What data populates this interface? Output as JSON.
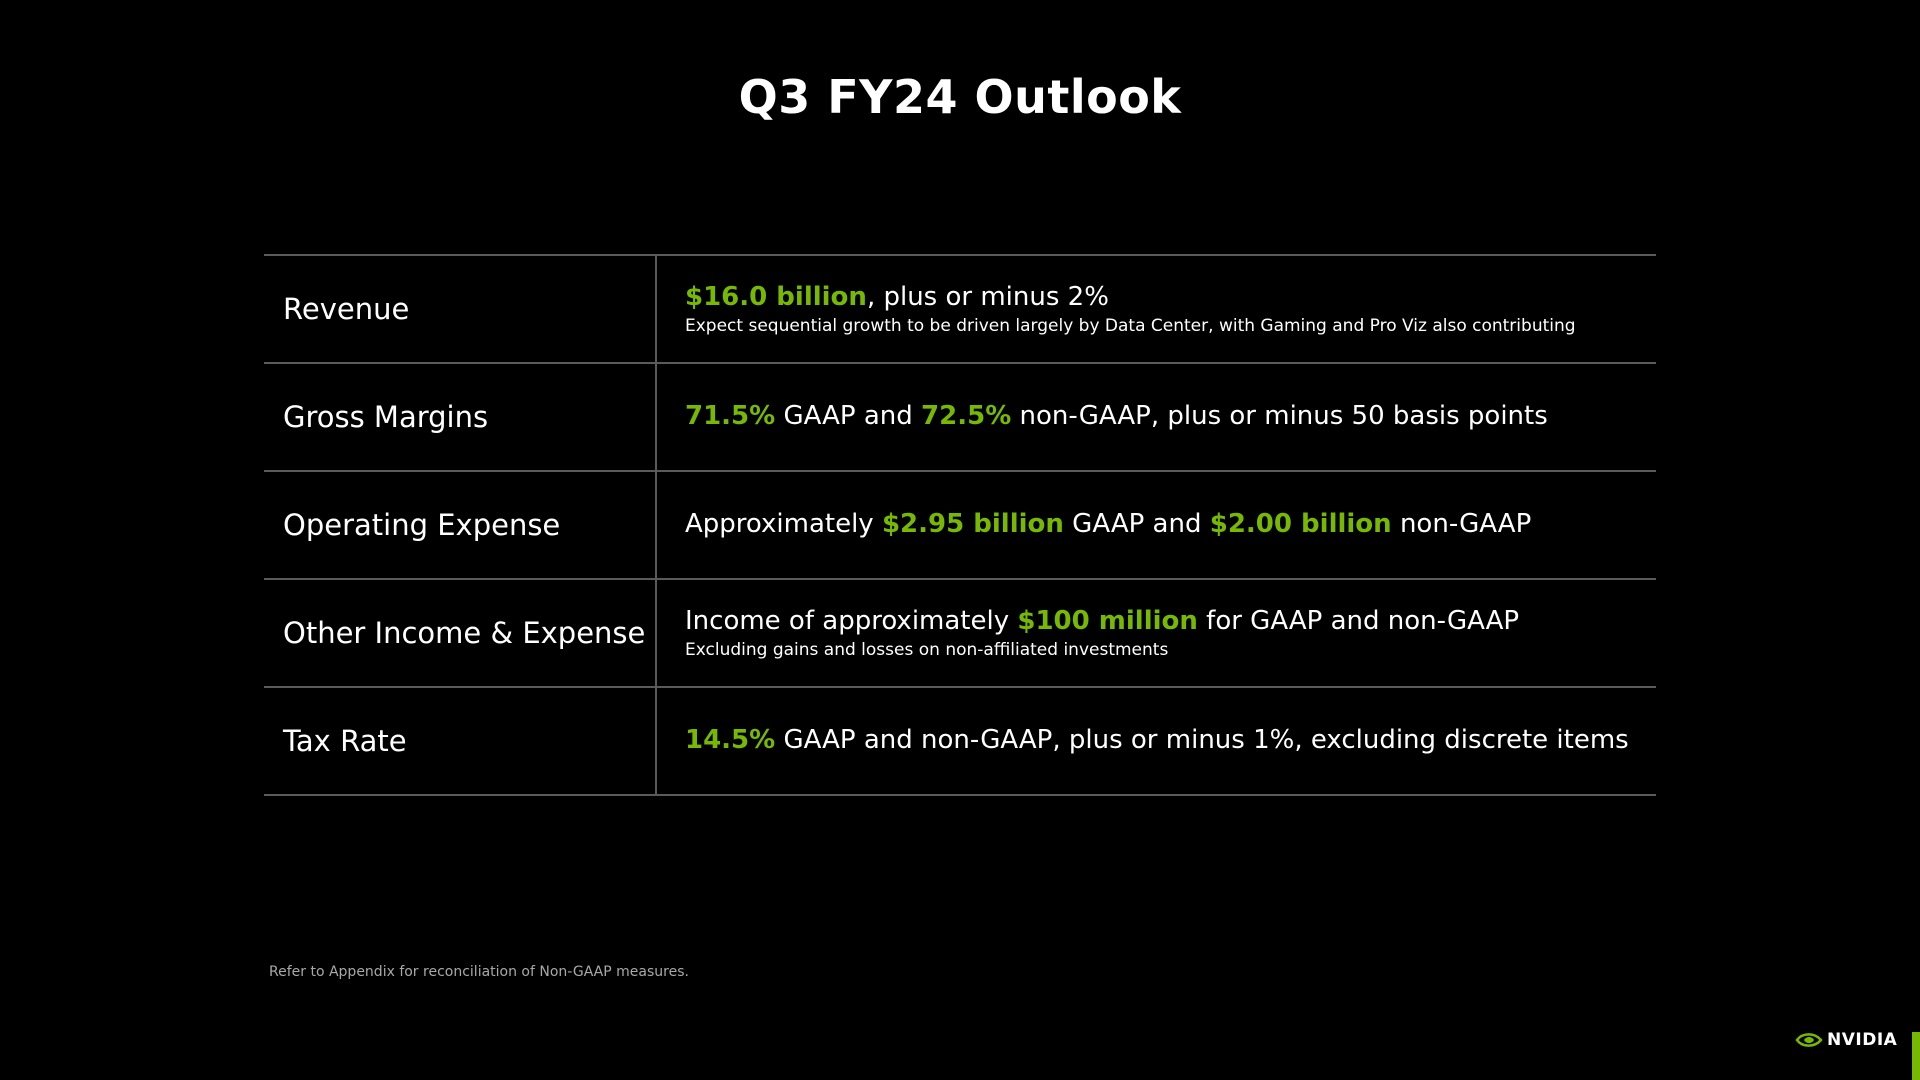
{
  "title": "Q3 FY24 Outlook",
  "colors": {
    "accent": "#76b900",
    "background": "#000000",
    "divider": "#5a5a5a"
  },
  "rows": [
    {
      "label": "Revenue",
      "main": [
        {
          "text": "$16.0 billion",
          "highlight": true
        },
        {
          "text": ", plus or minus 2%",
          "highlight": false
        }
      ],
      "sub": "Expect sequential growth to be driven largely by Data Center, with Gaming and Pro Viz also contributing"
    },
    {
      "label": "Gross Margins",
      "main": [
        {
          "text": "71.5%",
          "highlight": true
        },
        {
          "text": " GAAP and ",
          "highlight": false
        },
        {
          "text": "72.5%",
          "highlight": true
        },
        {
          "text": " non-GAAP, plus or minus 50 basis points",
          "highlight": false
        }
      ],
      "sub": ""
    },
    {
      "label": "Operating Expense",
      "main": [
        {
          "text": "Approximately ",
          "highlight": false
        },
        {
          "text": "$2.95 billion",
          "highlight": true
        },
        {
          "text": " GAAP and ",
          "highlight": false
        },
        {
          "text": "$2.00 billion",
          "highlight": true
        },
        {
          "text": " non-GAAP",
          "highlight": false
        }
      ],
      "sub": ""
    },
    {
      "label": "Other Income & Expense",
      "main": [
        {
          "text": "Income of approximately ",
          "highlight": false
        },
        {
          "text": "$100 million",
          "highlight": true
        },
        {
          "text": " for GAAP and non-GAAP",
          "highlight": false
        }
      ],
      "sub": "Excluding gains and losses on non-affiliated investments"
    },
    {
      "label": "Tax Rate",
      "main": [
        {
          "text": "14.5%",
          "highlight": true
        },
        {
          "text": " GAAP and non-GAAP, plus or minus 1%, excluding discrete items",
          "highlight": false
        }
      ],
      "sub": ""
    }
  ],
  "footnote": "Refer to Appendix for reconciliation of Non-GAAP measures.",
  "logo": {
    "text": "NVIDIA",
    "icon": "nvidia-eye-icon"
  }
}
